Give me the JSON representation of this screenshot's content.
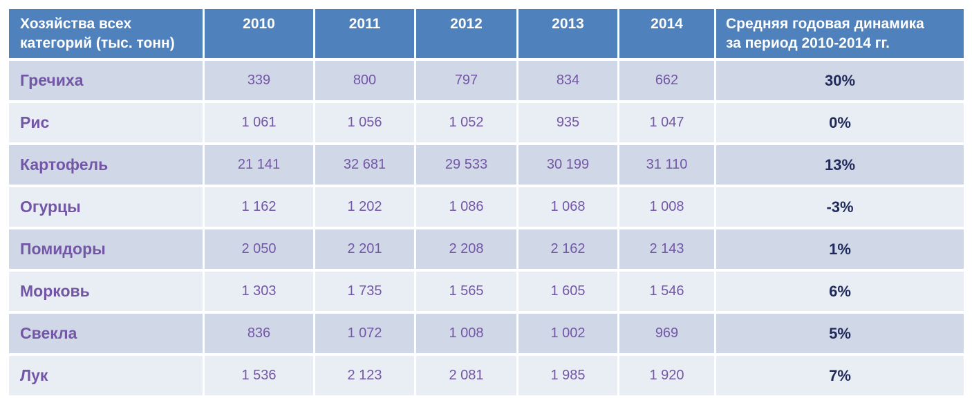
{
  "chart_data": {
    "type": "table",
    "header_label": "Хозяйства всех\nкатегорий (тыс. тонн)",
    "columns": [
      "2010",
      "2011",
      "2012",
      "2013",
      "2014"
    ],
    "dynamics_label": "Средняя годовая динамика\nза период 2010-2014 гг.",
    "rows": [
      {
        "name": "Гречиха",
        "values": [
          "339",
          "800",
          "797",
          "834",
          "662"
        ],
        "dynamics": "30%"
      },
      {
        "name": "Рис",
        "values": [
          "1 061",
          "1 056",
          "1 052",
          "935",
          "1 047"
        ],
        "dynamics": "0%"
      },
      {
        "name": "Картофель",
        "values": [
          "21 141",
          "32 681",
          "29 533",
          "30 199",
          "31 110"
        ],
        "dynamics": "13%"
      },
      {
        "name": "Огурцы",
        "values": [
          "1 162",
          "1 202",
          "1 086",
          "1 068",
          "1 008"
        ],
        "dynamics": "-3%"
      },
      {
        "name": "Помидоры",
        "values": [
          "2 050",
          "2 201",
          "2 208",
          "2 162",
          "2 143"
        ],
        "dynamics": "1%"
      },
      {
        "name": "Морковь",
        "values": [
          "1 303",
          "1 735",
          "1 565",
          "1 605",
          "1 546"
        ],
        "dynamics": "6%"
      },
      {
        "name": "Свекла",
        "values": [
          "836",
          "1 072",
          "1 008",
          "1 002",
          "969"
        ],
        "dynamics": "5%"
      },
      {
        "name": "Лук",
        "values": [
          "1 536",
          "2 123",
          "2 081",
          "1 985",
          "1 920"
        ],
        "dynamics": "7%"
      }
    ]
  },
  "colors": {
    "header_bg": "#4f81bd",
    "row_odd": "#d0d8e8",
    "row_even": "#e9edf4",
    "label_text": "#7356a6",
    "dynamics_text": "#1f2a5a"
  }
}
